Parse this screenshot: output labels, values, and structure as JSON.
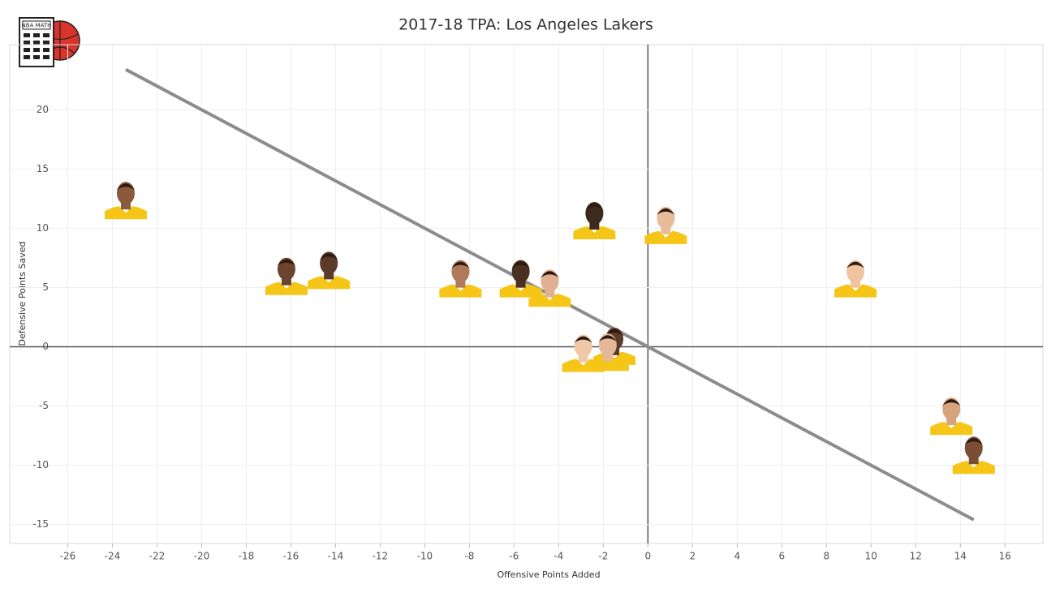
{
  "logo": "NBA MATH",
  "chart_data": {
    "type": "scatter",
    "title": "2017-18 TPA: Los Angeles Lakers",
    "x_label": "Offensive Points Added",
    "y_label": "Defensive Points Saved",
    "x": [
      -23.4,
      -16.2,
      -14.3,
      -8.4,
      -5.7,
      -4.4,
      -2.4,
      0.8,
      9.3,
      -1.5,
      -1.8,
      -2.9,
      13.6,
      14.6
    ],
    "y": [
      12.0,
      5.6,
      6.1,
      5.4,
      5.4,
      4.6,
      10.3,
      9.9,
      5.4,
      -0.3,
      -0.8,
      -0.9,
      -6.2,
      -9.5
    ],
    "color": "#f5c518",
    "trendline": {
      "x": [
        -23.4,
        14.6
      ],
      "y": [
        23.4,
        -14.6
      ],
      "color": "#8c8c8c"
    },
    "xlim": [
      -28.6,
      17.7
    ],
    "ylim": [
      -16.6,
      25.5
    ],
    "xticks": [
      -26,
      -24,
      -22,
      -20,
      -18,
      -16,
      -14,
      -12,
      -10,
      -8,
      -6,
      -4,
      -2,
      0,
      2,
      4,
      6,
      8,
      10,
      12,
      14,
      16
    ],
    "yticks": [
      -15,
      -10,
      -5,
      0,
      5,
      10,
      15,
      20
    ],
    "grid": true
  }
}
